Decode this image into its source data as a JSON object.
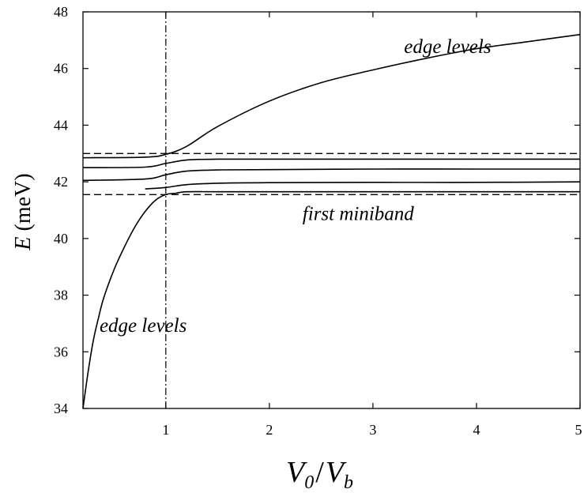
{
  "chart_data": {
    "type": "line",
    "xlabel": {
      "main": "V",
      "sub1": "0",
      "slash": "/",
      "main2": "V",
      "sub2": "b"
    },
    "ylabel": {
      "var": "E",
      "unit": " (meV)"
    },
    "xlim": [
      0.2,
      5
    ],
    "ylim": [
      34,
      48
    ],
    "x_ticks": [
      1,
      2,
      3,
      4,
      5
    ],
    "y_ticks": [
      34,
      36,
      38,
      40,
      42,
      44,
      46,
      48
    ],
    "grid": false,
    "vertical_line": {
      "x": 1,
      "style": "dash-dot"
    },
    "dashed_lines": [
      {
        "name": "miniband-top",
        "y": 43.0
      },
      {
        "name": "miniband-bottom",
        "y": 41.55
      }
    ],
    "series": [
      {
        "id": "edge-level-upper",
        "x": [
          0.2,
          0.8,
          1.0,
          1.2,
          1.5,
          2.0,
          2.5,
          3.0,
          3.5,
          4.0,
          4.5,
          5.0
        ],
        "y": [
          42.85,
          42.87,
          42.97,
          43.25,
          43.95,
          44.85,
          45.5,
          45.95,
          46.35,
          46.7,
          46.95,
          47.2
        ]
      },
      {
        "id": "miniband-level-1",
        "x": [
          0.2,
          0.8,
          1.0,
          1.2,
          1.5,
          2.0,
          3.0,
          4.0,
          5.0
        ],
        "y": [
          42.5,
          42.52,
          42.65,
          42.77,
          42.8,
          42.8,
          42.8,
          42.8,
          42.8
        ]
      },
      {
        "id": "miniband-level-2",
        "x": [
          0.2,
          0.8,
          1.0,
          1.2,
          1.5,
          2.0,
          3.0,
          4.0,
          5.0
        ],
        "y": [
          42.05,
          42.1,
          42.25,
          42.38,
          42.42,
          42.43,
          42.45,
          42.45,
          42.45
        ]
      },
      {
        "id": "miniband-level-3",
        "x": [
          0.8,
          1.0,
          1.2,
          1.5,
          2.0,
          3.0,
          4.0,
          5.0
        ],
        "y": [
          41.75,
          41.8,
          41.9,
          41.95,
          41.97,
          41.98,
          41.98,
          42.0
        ]
      },
      {
        "id": "edge-level-lower",
        "x": [
          0.2,
          0.25,
          0.3,
          0.35,
          0.4,
          0.5,
          0.6,
          0.7,
          0.8,
          0.9,
          1.0,
          1.1,
          1.2,
          1.5,
          2.0,
          3.0,
          4.0,
          5.0
        ],
        "y": [
          34.0,
          35.3,
          36.4,
          37.2,
          37.9,
          38.9,
          39.7,
          40.4,
          40.95,
          41.35,
          41.55,
          41.6,
          41.65,
          41.65,
          41.65,
          41.65,
          41.65,
          41.65
        ]
      }
    ],
    "annotations": [
      {
        "text": "edge levels",
        "x": 3.3,
        "y": 46.55
      },
      {
        "text": "first miniband",
        "x": 2.32,
        "y": 40.65
      },
      {
        "text": "edge levels",
        "x": 0.36,
        "y": 36.7
      }
    ]
  }
}
